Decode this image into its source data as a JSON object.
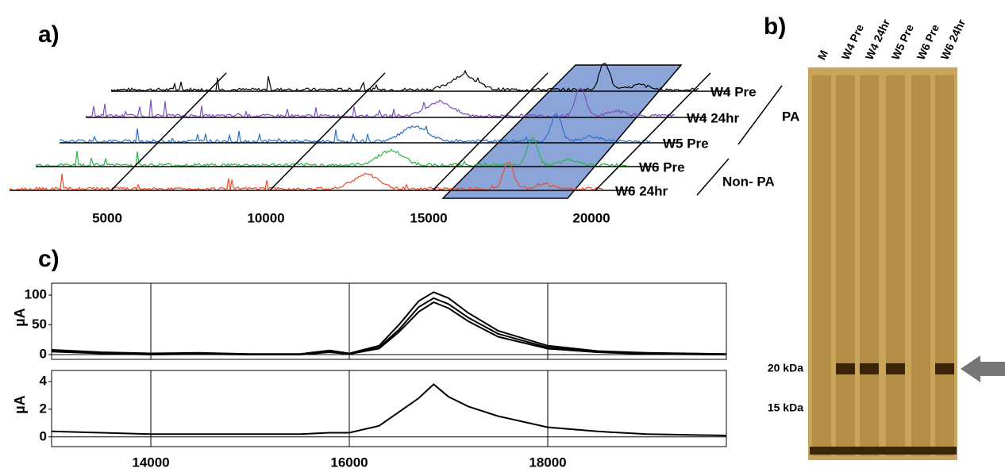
{
  "panel_a": {
    "label": "a)",
    "axis_ticks": [
      5000,
      10000,
      15000,
      20000
    ],
    "samples": [
      "W4 Pre",
      "W4 24hr",
      "W5 Pre",
      "W6 Pre",
      "W6 24hr"
    ],
    "groups": [
      "PA",
      "Non- PA"
    ]
  },
  "panel_b": {
    "label": "b)",
    "lanes": [
      "M",
      "W4 Pre",
      "W4 24hr",
      "W5 Pre",
      "W6 Pre",
      "W6 24hr"
    ],
    "markers": [
      "20 kDa",
      "15 kDa"
    ]
  },
  "panel_c": {
    "label": "c)"
  },
  "chart_data": [
    {
      "type": "line",
      "y_label": "µA",
      "x": [
        13000,
        13500,
        14000,
        14500,
        15000,
        15500,
        15800,
        16000,
        16300,
        16500,
        16700,
        16850,
        17000,
        17200,
        17500,
        18000,
        18500,
        19000,
        19800
      ],
      "series": [
        {
          "color": "#000000",
          "values": [
            8,
            4,
            2,
            3,
            1,
            1,
            7,
            2,
            15,
            50,
            90,
            105,
            95,
            70,
            40,
            15,
            6,
            3,
            1
          ]
        },
        {
          "color": "#000000",
          "values": [
            6,
            3,
            1,
            2,
            0,
            0,
            5,
            1,
            12,
            42,
            80,
            95,
            85,
            62,
            35,
            12,
            5,
            2,
            0
          ]
        },
        {
          "color": "#000000",
          "values": [
            5,
            2,
            0,
            1,
            0,
            0,
            4,
            1,
            10,
            38,
            72,
            88,
            78,
            56,
            30,
            10,
            4,
            1,
            0
          ]
        }
      ],
      "xlim": [
        13000,
        19800
      ],
      "ylim": [
        -8,
        120
      ],
      "xticks": [
        14000,
        16000,
        18000
      ],
      "yticks": [
        0,
        50,
        100
      ],
      "grid": true
    },
    {
      "type": "line",
      "y_label": "µA",
      "x": [
        13000,
        13500,
        14000,
        14500,
        15000,
        15500,
        15800,
        16000,
        16300,
        16500,
        16700,
        16850,
        17000,
        17200,
        17500,
        18000,
        18500,
        19000,
        19800
      ],
      "series": [
        {
          "color": "#000000",
          "values": [
            0.4,
            0.3,
            0.2,
            0.2,
            0.2,
            0.2,
            0.3,
            0.3,
            0.8,
            1.8,
            2.8,
            3.8,
            2.9,
            2.2,
            1.5,
            0.7,
            0.4,
            0.2,
            0.1
          ]
        }
      ],
      "xlim": [
        13000,
        19800
      ],
      "ylim": [
        -0.7,
        4.8
      ],
      "xticks": [
        14000,
        16000,
        18000
      ],
      "yticks": [
        0,
        2,
        4
      ],
      "grid": true
    }
  ]
}
